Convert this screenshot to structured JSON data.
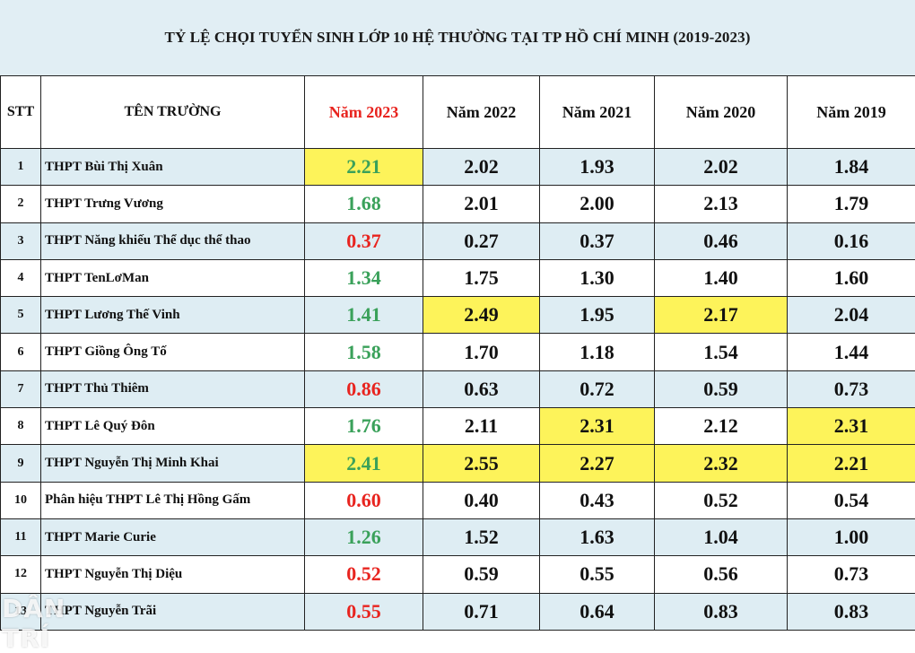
{
  "title": "TỶ LỆ CHỌI TUYỂN SINH LỚP 10 HỆ THƯỜNG TẠI TP HỒ CHÍ MINH (2019-2023)",
  "columns": {
    "stt": "STT",
    "name": "TÊN TRƯỜNG",
    "years": [
      "Năm 2023",
      "Năm 2022",
      "Năm 2021",
      "Năm 2020",
      "Năm 2019"
    ]
  },
  "colors": {
    "title_bg": "#e1eef4",
    "row_shade": "#deedf3",
    "highlight": "#fdf35a",
    "rise_green": "#3aa15a",
    "drop_red": "#e8241f"
  },
  "rows": [
    {
      "stt": "1",
      "name": "THPT Bùi Thị Xuân",
      "v": [
        "2.21",
        "2.02",
        "1.93",
        "2.02",
        "1.84"
      ],
      "trend": "up",
      "highlight": [
        0
      ]
    },
    {
      "stt": "2",
      "name": "THPT Trưng Vương",
      "v": [
        "1.68",
        "2.01",
        "2.00",
        "2.13",
        "1.79"
      ],
      "trend": "up",
      "highlight": []
    },
    {
      "stt": "3",
      "name": "THPT Năng khiếu Thể dục thể thao",
      "v": [
        "0.37",
        "0.27",
        "0.37",
        "0.46",
        "0.16"
      ],
      "trend": "down",
      "highlight": []
    },
    {
      "stt": "4",
      "name": "THPT TenLơMan",
      "v": [
        "1.34",
        "1.75",
        "1.30",
        "1.40",
        "1.60"
      ],
      "trend": "up",
      "highlight": []
    },
    {
      "stt": "5",
      "name": "THPT Lương Thế Vinh",
      "v": [
        "1.41",
        "2.49",
        "1.95",
        "2.17",
        "2.04"
      ],
      "trend": "up",
      "highlight": [
        1,
        3
      ]
    },
    {
      "stt": "6",
      "name": "THPT Giồng Ông Tố",
      "v": [
        "1.58",
        "1.70",
        "1.18",
        "1.54",
        "1.44"
      ],
      "trend": "up",
      "highlight": []
    },
    {
      "stt": "7",
      "name": "THPT Thủ Thiêm",
      "v": [
        "0.86",
        "0.63",
        "0.72",
        "0.59",
        "0.73"
      ],
      "trend": "down",
      "highlight": []
    },
    {
      "stt": "8",
      "name": "THPT Lê Quý Đôn",
      "v": [
        "1.76",
        "2.11",
        "2.31",
        "2.12",
        "2.31"
      ],
      "trend": "up",
      "highlight": [
        2,
        4
      ]
    },
    {
      "stt": "9",
      "name": "THPT Nguyễn Thị Minh Khai",
      "v": [
        "2.41",
        "2.55",
        "2.27",
        "2.32",
        "2.21"
      ],
      "trend": "up",
      "highlight": [
        0,
        1,
        2,
        3,
        4
      ]
    },
    {
      "stt": "10",
      "name": "Phân hiệu THPT Lê Thị Hồng Gấm",
      "v": [
        "0.60",
        "0.40",
        "0.43",
        "0.52",
        "0.54"
      ],
      "trend": "down",
      "highlight": []
    },
    {
      "stt": "11",
      "name": "THPT Marie Curie",
      "v": [
        "1.26",
        "1.52",
        "1.63",
        "1.04",
        "1.00"
      ],
      "trend": "up",
      "highlight": []
    },
    {
      "stt": "12",
      "name": "THPT Nguyễn Thị Diệu",
      "v": [
        "0.52",
        "0.59",
        "0.55",
        "0.56",
        "0.73"
      ],
      "trend": "down",
      "highlight": []
    },
    {
      "stt": "13",
      "name": "THPT Nguyễn Trãi",
      "v": [
        "0.55",
        "0.71",
        "0.64",
        "0.83",
        "0.83"
      ],
      "trend": "down",
      "highlight": []
    }
  ],
  "watermark": "DÂN TRÍ"
}
